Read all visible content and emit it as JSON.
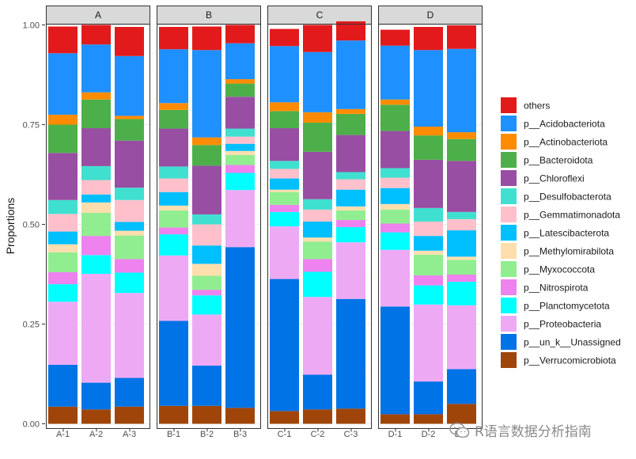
{
  "colors": {
    "others": "#E31A1C",
    "p__Acidobacteriota": "#1E90FF",
    "p__Actinobacteriota": "#FF8C00",
    "p__Bacteroidota": "#4DAF4A",
    "p__Chloroflexi": "#984EA3",
    "p__Desulfobacterota": "#40E0D0",
    "p__Gemmatimonadota": "#FFC0CB",
    "p__Latescibacterota": "#00BFFF",
    "p__Methylomirabilota": "#FFDEAD",
    "p__Myxococcota": "#90EE90",
    "p__Nitrospirota": "#EE82EE",
    "p__Planctomycetota": "#00FFFF",
    "p__Proteobacteria": "#EEA9F5",
    "p__un_k__Unassigned": "#0073E6",
    "p__Verrucomicrobiota": "#A0450A"
  },
  "chart_data": {
    "type": "bar",
    "stacked": true,
    "ylabel": "Proportions",
    "ylim": [
      0,
      1
    ],
    "yticks": [
      "0.00",
      "0.25",
      "0.50",
      "0.75",
      "1.00"
    ],
    "panels": [
      {
        "name": "A",
        "samples": [
          "A-1",
          "A-2",
          "A-3"
        ]
      },
      {
        "name": "B",
        "samples": [
          "B-1",
          "B-2",
          "B-3"
        ]
      },
      {
        "name": "C",
        "samples": [
          "C-1",
          "C-2",
          "C-3"
        ]
      },
      {
        "name": "D",
        "samples": [
          "D-1",
          "D-2",
          "D-3"
        ]
      }
    ],
    "stack_order_bottom_to_top": [
      "p__Verrucomicrobiota",
      "p__un_k__Unassigned",
      "p__Proteobacteria",
      "p__Planctomycetota",
      "p__Nitrospirota",
      "p__Myxococcota",
      "p__Methylomirabilota",
      "p__Latescibacterota",
      "p__Gemmatimonadota",
      "p__Desulfobacterota",
      "p__Chloroflexi",
      "p__Bacteroidota",
      "p__Actinobacteriota",
      "p__Acidobacteriota",
      "others"
    ],
    "legend_position": "right",
    "legend": [
      "others",
      "p__Acidobacteriota",
      "p__Actinobacteriota",
      "p__Bacteroidota",
      "p__Chloroflexi",
      "p__Desulfobacterota",
      "p__Gemmatimonadota",
      "p__Latescibacterota",
      "p__Methylomirabilota",
      "p__Myxococcota",
      "p__Nitrospirota",
      "p__Planctomycetota",
      "p__Proteobacteria",
      "p__un_k__Unassigned",
      "p__Verrucomicrobiota"
    ],
    "series": [
      {
        "name": "p__Verrucomicrobiota",
        "values": [
          0.043,
          0.036,
          0.043,
          0.045,
          0.045,
          0.04,
          0.032,
          0.036,
          0.038,
          0.024,
          0.024,
          0.05
        ]
      },
      {
        "name": "p__un_k__Unassigned",
        "values": [
          0.105,
          0.067,
          0.072,
          0.213,
          0.101,
          0.403,
          0.331,
          0.087,
          0.275,
          0.27,
          0.082,
          0.087
        ]
      },
      {
        "name": "p__Proteobacteria",
        "values": [
          0.158,
          0.273,
          0.213,
          0.164,
          0.128,
          0.143,
          0.132,
          0.195,
          0.142,
          0.142,
          0.193,
          0.16
        ]
      },
      {
        "name": "p__Planctomycetota",
        "values": [
          0.044,
          0.047,
          0.051,
          0.053,
          0.048,
          0.043,
          0.036,
          0.063,
          0.038,
          0.044,
          0.048,
          0.059
        ]
      },
      {
        "name": "p__Nitrospirota",
        "values": [
          0.03,
          0.048,
          0.034,
          0.017,
          0.014,
          0.02,
          0.018,
          0.032,
          0.018,
          0.022,
          0.025,
          0.018
        ]
      },
      {
        "name": "p__Myxococcota",
        "values": [
          0.05,
          0.058,
          0.059,
          0.043,
          0.035,
          0.025,
          0.032,
          0.044,
          0.024,
          0.035,
          0.052,
          0.037
        ]
      },
      {
        "name": "p__Methylomirabilota",
        "values": [
          0.02,
          0.026,
          0.012,
          0.012,
          0.03,
          0.01,
          0.006,
          0.01,
          0.01,
          0.014,
          0.01,
          0.008
        ]
      },
      {
        "name": "p__Latescibacterota",
        "values": [
          0.032,
          0.02,
          0.022,
          0.034,
          0.046,
          0.018,
          0.028,
          0.04,
          0.042,
          0.04,
          0.037,
          0.066
        ]
      },
      {
        "name": "p__Gemmatimonadota",
        "values": [
          0.044,
          0.036,
          0.055,
          0.034,
          0.053,
          0.018,
          0.024,
          0.03,
          0.026,
          0.026,
          0.036,
          0.028
        ]
      },
      {
        "name": "p__Desulfobacterota",
        "values": [
          0.035,
          0.035,
          0.031,
          0.03,
          0.025,
          0.02,
          0.02,
          0.026,
          0.018,
          0.024,
          0.034,
          0.018
        ]
      },
      {
        "name": "p__Chloroflexi",
        "values": [
          0.118,
          0.095,
          0.118,
          0.095,
          0.122,
          0.08,
          0.082,
          0.119,
          0.093,
          0.093,
          0.121,
          0.128
        ]
      },
      {
        "name": "p__Bacteroidota",
        "values": [
          0.071,
          0.072,
          0.054,
          0.047,
          0.052,
          0.033,
          0.043,
          0.073,
          0.053,
          0.066,
          0.061,
          0.055
        ]
      },
      {
        "name": "p__Actinobacteriota",
        "values": [
          0.025,
          0.018,
          0.008,
          0.017,
          0.019,
          0.011,
          0.022,
          0.026,
          0.012,
          0.013,
          0.022,
          0.017
        ]
      },
      {
        "name": "p__Acidobacteriota",
        "values": [
          0.154,
          0.12,
          0.15,
          0.135,
          0.219,
          0.09,
          0.141,
          0.151,
          0.172,
          0.135,
          0.192,
          0.209
        ]
      },
      {
        "name": "others",
        "values": [
          0.067,
          0.049,
          0.073,
          0.056,
          0.059,
          0.046,
          0.043,
          0.068,
          0.048,
          0.04,
          0.058,
          0.059
        ]
      }
    ]
  },
  "watermark": {
    "text": "R语言数据分析指南",
    "icon": "wechat-icon"
  }
}
